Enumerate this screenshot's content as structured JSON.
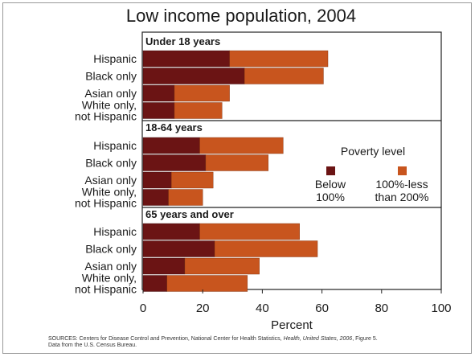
{
  "chart_data": {
    "type": "bar",
    "orientation": "horizontal",
    "stacked": true,
    "title": "Low income population, 2004",
    "xlabel": "Percent",
    "xlim": [
      0,
      100
    ],
    "xticks": [
      "0",
      "20",
      "40",
      "60",
      "80",
      "100"
    ],
    "legend": {
      "title": "Poverty level",
      "placement": "right",
      "items": [
        {
          "label_lines": [
            "Below",
            "100%"
          ],
          "color": "#6b1414"
        },
        {
          "label_lines": [
            "100%-less",
            "than 200%"
          ],
          "color": "#c8551e"
        }
      ]
    },
    "series": [
      {
        "name": "Below 100%",
        "color": "#6b1414"
      },
      {
        "name": "100%-less than 200%",
        "color": "#c8551e"
      }
    ],
    "panels": [
      {
        "title": "Under 18 years",
        "categories": [
          {
            "lines": [
              "Hispanic"
            ],
            "below_100": 29,
            "from_100_to_200": 33
          },
          {
            "lines": [
              "Black only"
            ],
            "below_100": 34,
            "from_100_to_200": 26.5
          },
          {
            "lines": [
              "Asian only"
            ],
            "below_100": 10.5,
            "from_100_to_200": 18.5
          },
          {
            "lines": [
              "White only,",
              "not Hispanic"
            ],
            "below_100": 10.5,
            "from_100_to_200": 16
          }
        ]
      },
      {
        "title": "18-64 years",
        "categories": [
          {
            "lines": [
              "Hispanic"
            ],
            "below_100": 19,
            "from_100_to_200": 28
          },
          {
            "lines": [
              "Black only"
            ],
            "below_100": 21,
            "from_100_to_200": 21
          },
          {
            "lines": [
              "Asian only"
            ],
            "below_100": 9.5,
            "from_100_to_200": 14
          },
          {
            "lines": [
              "White only,",
              "not Hispanic"
            ],
            "below_100": 8.5,
            "from_100_to_200": 11.5
          }
        ]
      },
      {
        "title": "65 years and over",
        "categories": [
          {
            "lines": [
              "Hispanic"
            ],
            "below_100": 19,
            "from_100_to_200": 33.5
          },
          {
            "lines": [
              "Black only"
            ],
            "below_100": 24,
            "from_100_to_200": 34.5
          },
          {
            "lines": [
              "Asian only"
            ],
            "below_100": 14,
            "from_100_to_200": 25
          },
          {
            "lines": [
              "White only,",
              "not Hispanic"
            ],
            "below_100": 8,
            "from_100_to_200": 27
          }
        ]
      }
    ]
  },
  "source": {
    "part1": "SOURCES: Centers for Disease Control and Prevention, National Center for Health Statistics, ",
    "italic": "Health, United States, 2006",
    "part2": ", Figure 5.",
    "line2": "Data from the U.S. Census Bureau."
  }
}
